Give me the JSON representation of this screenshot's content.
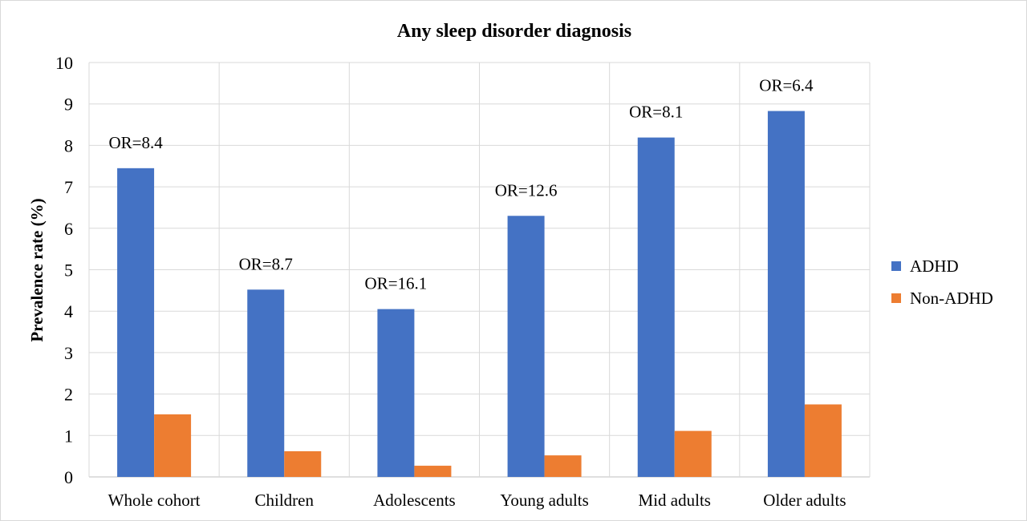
{
  "chart_data": {
    "type": "bar",
    "title": "Any sleep disorder diagnosis",
    "xlabel": "",
    "ylabel": "Prevalence rate (%)",
    "ylim": [
      0,
      10
    ],
    "yticks": [
      0,
      1,
      2,
      3,
      4,
      5,
      6,
      7,
      8,
      9,
      10
    ],
    "grid": true,
    "legend_position": "right",
    "categories": [
      "Whole cohort",
      "Children",
      "Adolescents",
      "Young adults",
      "Mid adults",
      "Older adults"
    ],
    "series": [
      {
        "name": "ADHD",
        "color": "#4472c4",
        "values": [
          7.45,
          4.52,
          4.05,
          6.3,
          8.19,
          8.83
        ]
      },
      {
        "name": "Non-ADHD",
        "color": "#ed7d31",
        "values": [
          1.51,
          0.62,
          0.27,
          0.52,
          1.11,
          1.75
        ]
      }
    ],
    "annotations": [
      "OR=8.4",
      "OR=8.7",
      "OR=16.1",
      "OR=12.6",
      "OR=8.1",
      "OR=6.4"
    ]
  }
}
